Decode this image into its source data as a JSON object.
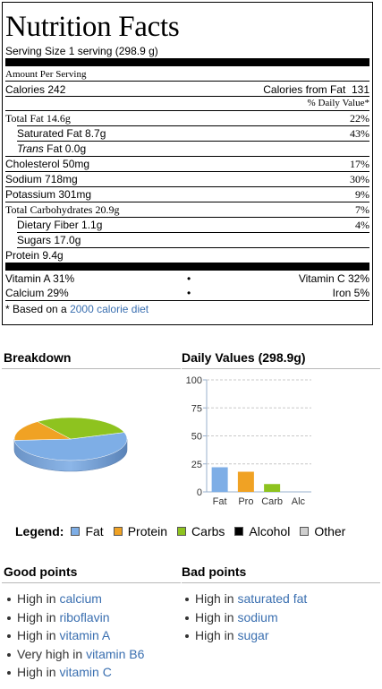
{
  "nutrition": {
    "title": "Nutrition Facts",
    "serving_label": "Serving Size 1 serving (298.9 g)",
    "amount_per_serving": "Amount Per Serving",
    "calories_label": "Calories 242",
    "calories_fat_label": "Calories from Fat",
    "calories_fat_value": "131",
    "daily_value_header": "% Daily Value*",
    "rows": [
      {
        "label": "Total Fat 14.6g",
        "pct": "22%"
      },
      {
        "label": "Saturated Fat 8.7g",
        "pct": "43%"
      },
      {
        "label_italic": "Trans",
        "label_rest": " Fat 0.0g",
        "pct": ""
      },
      {
        "label": "Cholesterol 50mg",
        "pct": "17%"
      },
      {
        "label": "Sodium 718mg",
        "pct": "30%"
      },
      {
        "label": "Potassium 301mg",
        "pct": "9%"
      },
      {
        "label": "Total Carbohydrates 20.9g",
        "pct": "7%"
      },
      {
        "label": "Dietary Fiber 1.1g",
        "pct": "4%"
      },
      {
        "label": "Sugars 17.0g",
        "pct": ""
      },
      {
        "label": "Protein 9.4g",
        "pct": ""
      }
    ],
    "vitamin_a": "Vitamin A 31%",
    "vitamin_c": "Vitamin C 32%",
    "calcium": "Calcium 29%",
    "iron": "Iron 5%",
    "bullet": "•",
    "footnote_prefix": "* Based on a ",
    "footnote_link": "2000 calorie diet"
  },
  "breakdown": {
    "title": "Breakdown"
  },
  "daily_values": {
    "title": "Daily Values (298.9g)"
  },
  "chart_data": {
    "type": "bar",
    "title": "Daily Values (298.9g)",
    "categories": [
      "Fat",
      "Pro",
      "Carb",
      "Alc"
    ],
    "values": [
      22,
      18,
      7,
      0
    ],
    "ylim": [
      0,
      100
    ],
    "yticks": [
      "0",
      "25",
      "50",
      "75",
      "100"
    ],
    "grid": true,
    "colors": [
      "#7eaee6",
      "#f0a224",
      "#8ec31f",
      "#000000"
    ]
  },
  "pie": {
    "slices": [
      {
        "name": "Fat",
        "color": "#7eaee6",
        "value": 54
      },
      {
        "name": "Protein",
        "color": "#f0a224",
        "value": 16
      },
      {
        "name": "Carbs",
        "color": "#8ec31f",
        "value": 30
      }
    ]
  },
  "legend": {
    "title": "Legend:",
    "items": [
      {
        "label": "Fat",
        "color": "#7eaee6"
      },
      {
        "label": "Protein",
        "color": "#f0a224"
      },
      {
        "label": "Carbs",
        "color": "#8ec31f"
      },
      {
        "label": "Alcohol",
        "color": "#000000"
      },
      {
        "label": "Other",
        "color": "#cfcfcf"
      }
    ]
  },
  "good_points": {
    "title": "Good points",
    "items": [
      {
        "prefix": "High in ",
        "link": "calcium"
      },
      {
        "prefix": "High in ",
        "link": "riboflavin"
      },
      {
        "prefix": "High in ",
        "link": "vitamin A"
      },
      {
        "prefix": "Very high in ",
        "link": "vitamin B6"
      },
      {
        "prefix": "High in ",
        "link": "vitamin C"
      }
    ]
  },
  "bad_points": {
    "title": "Bad points",
    "items": [
      {
        "prefix": "High in ",
        "link": "saturated fat"
      },
      {
        "prefix": "High in ",
        "link": "sodium"
      },
      {
        "prefix": "High in ",
        "link": "sugar"
      }
    ]
  }
}
